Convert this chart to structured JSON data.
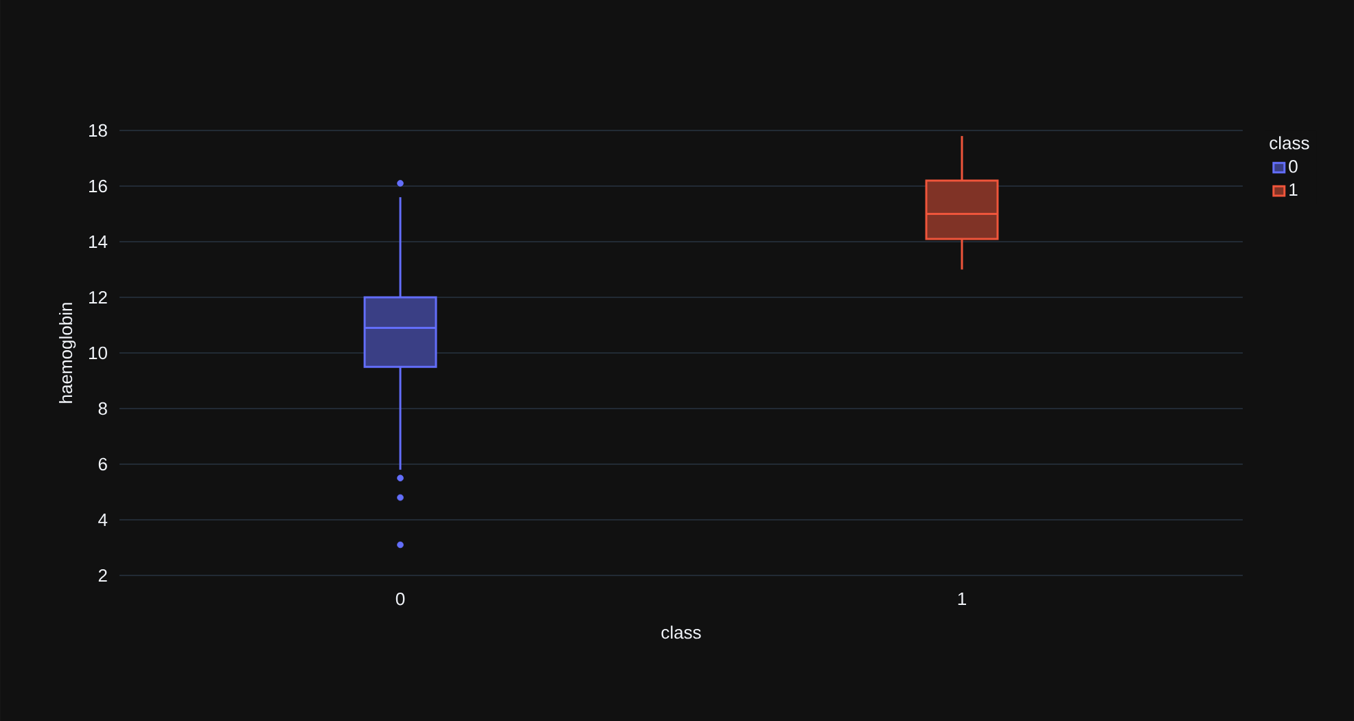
{
  "chart_data": {
    "type": "box",
    "xlabel": "class",
    "ylabel": "haemoglobin",
    "legend_title": "class",
    "legend": "top right",
    "grid": "y",
    "categories": [
      "0",
      "1"
    ],
    "ylim": [
      2,
      18
    ],
    "yticks": [
      2,
      4,
      6,
      8,
      10,
      12,
      14,
      16,
      18
    ],
    "series": [
      {
        "name": "0",
        "color": "#636efa",
        "boxes": [
          {
            "low": 5.8,
            "q1": 9.5,
            "median": 10.9,
            "q3": 12.0,
            "high": 15.6,
            "outliers": [
              16.1,
              5.5,
              4.8,
              3.1
            ]
          },
          null
        ]
      },
      {
        "name": "1",
        "color": "#ef553b",
        "boxes": [
          null,
          {
            "low": 13.0,
            "q1": 14.1,
            "median": 15.0,
            "q3": 16.2,
            "high": 17.8
          }
        ]
      }
    ]
  }
}
